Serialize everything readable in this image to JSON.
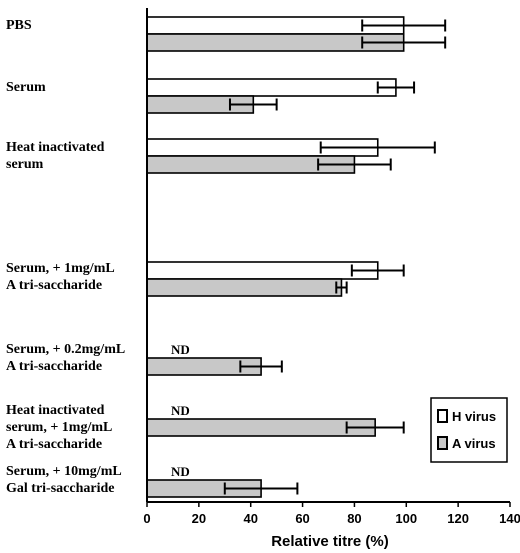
{
  "chart_data": {
    "type": "bar",
    "orientation": "horizontal",
    "xlabel": "Relative titre (%)",
    "ylabel": "",
    "xlim": [
      0,
      140
    ],
    "xticks": [
      "0",
      "20",
      "40",
      "60",
      "80",
      "100",
      "120",
      "140"
    ],
    "grid": false,
    "legend_position": "bottom-right",
    "colors": {
      "H virus": "#ffffff",
      "A virus": "#c8c8c8",
      "edge": "#000000"
    },
    "groups": [
      {
        "label_lines": [
          "PBS"
        ],
        "label_spacer": false,
        "h": {
          "value": 99,
          "error": 16,
          "nd_label": null
        },
        "a": {
          "value": 99,
          "error": 16
        }
      },
      {
        "label_lines": [
          "Serum"
        ],
        "label_spacer": false,
        "h": {
          "value": 96,
          "error": 7,
          "nd_label": null
        },
        "a": {
          "value": 41,
          "error": 9
        }
      },
      {
        "label_lines": [
          "Heat inactivated",
          "serum"
        ],
        "label_spacer": false,
        "h": {
          "value": 89,
          "error": 22,
          "nd_label": null
        },
        "a": {
          "value": 80,
          "error": 14
        }
      },
      {
        "label_lines": [
          "Serum, + 1mg/mL",
          "A tri-saccharide"
        ],
        "label_spacer": true,
        "h": {
          "value": 89,
          "error": 10,
          "nd_label": null
        },
        "a": {
          "value": 75,
          "error": 2
        }
      },
      {
        "label_lines": [
          "Serum, + 0.2mg/mL",
          "A tri-saccharide"
        ],
        "label_spacer": false,
        "h": {
          "value": null,
          "error": null,
          "nd_label": "ND"
        },
        "a": {
          "value": 44,
          "error": 8
        }
      },
      {
        "label_lines": [
          "Heat inactivated",
          "serum, + 1mg/mL",
          "A tri-saccharide"
        ],
        "label_spacer": false,
        "h": {
          "value": null,
          "error": null,
          "nd_label": "ND"
        },
        "a": {
          "value": 88,
          "error": 11
        }
      },
      {
        "label_lines": [
          "Serum, + 10mg/mL",
          "Gal tri-saccharide"
        ],
        "label_spacer": false,
        "h": {
          "value": null,
          "error": null,
          "nd_label": "ND"
        },
        "a": {
          "value": 44,
          "error": 14
        }
      }
    ],
    "series": [
      {
        "name": "H virus",
        "key": "h"
      },
      {
        "name": "A virus",
        "key": "a"
      }
    ]
  }
}
